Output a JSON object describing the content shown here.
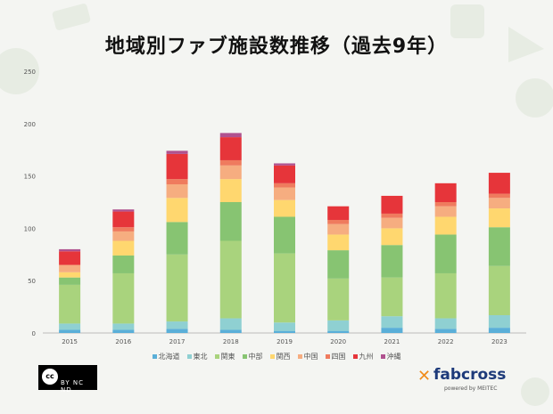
{
  "title": "地域別ファブ施設数推移（過去9年）",
  "colors": {
    "background": "#f4f5f2",
    "decoration": "#e6ebe2",
    "axis_text": "#555555",
    "grid": "#dedede"
  },
  "chart_data": {
    "type": "bar",
    "stacked": true,
    "title": "地域別ファブ施設数推移（過去9年）",
    "categories": [
      "2015",
      "2016",
      "2017",
      "2018",
      "2019",
      "2020",
      "2021",
      "2022",
      "2023"
    ],
    "ylim": [
      0,
      250
    ],
    "yticks": [
      0,
      50,
      100,
      150,
      200,
      250
    ],
    "grid": false,
    "legend_position": "bottom",
    "series": [
      {
        "name": "北海道",
        "color": "#5aafd8",
        "values": [
          3,
          3,
          4,
          3,
          2,
          2,
          5,
          4,
          5
        ]
      },
      {
        "name": "東北",
        "color": "#8fd0d2",
        "values": [
          6,
          6,
          7,
          11,
          8,
          10,
          11,
          10,
          12
        ]
      },
      {
        "name": "関東",
        "color": "#a9d37d",
        "values": [
          37,
          48,
          64,
          74,
          66,
          40,
          37,
          43,
          47
        ]
      },
      {
        "name": "中部",
        "color": "#87c472",
        "values": [
          7,
          17,
          31,
          37,
          35,
          27,
          31,
          37,
          37
        ]
      },
      {
        "name": "関西",
        "color": "#ffd76f",
        "values": [
          5,
          14,
          23,
          22,
          16,
          15,
          16,
          17,
          18
        ]
      },
      {
        "name": "中国",
        "color": "#f6ad80",
        "values": [
          7,
          9,
          13,
          13,
          12,
          10,
          10,
          10,
          10
        ]
      },
      {
        "name": "四国",
        "color": "#ef7b5e",
        "values": [
          0,
          4,
          5,
          5,
          4,
          4,
          4,
          4,
          4
        ]
      },
      {
        "name": "九州",
        "color": "#e6353a",
        "values": [
          13,
          15,
          24,
          22,
          17,
          13,
          17,
          18,
          20
        ]
      },
      {
        "name": "沖縄",
        "color": "#b0528f",
        "values": [
          2,
          2,
          3,
          4,
          2,
          0,
          0,
          0,
          0
        ]
      }
    ]
  },
  "license": {
    "cc_label": "cc",
    "terms": "BY NC ND"
  },
  "brand": {
    "mark": "✕",
    "name": "fabcross",
    "tagline": "powered by MEITEC"
  }
}
